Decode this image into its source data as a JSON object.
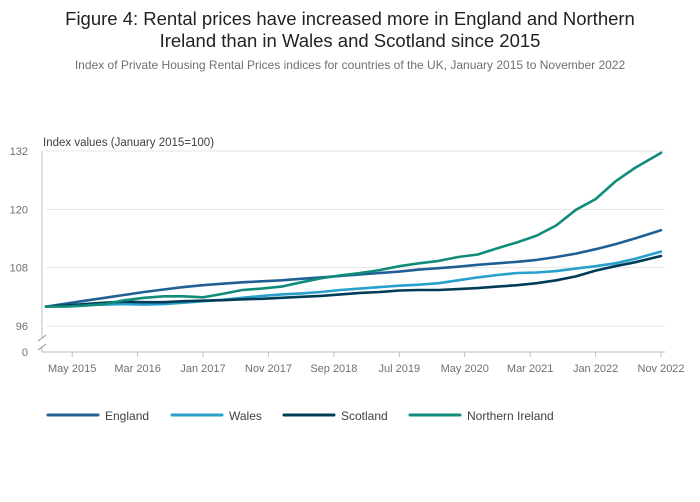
{
  "title_line1": "Figure 4: Rental prices have increased more in England and Northern",
  "title_line2": "Ireland than in Wales and Scotland since 2015",
  "subtitle": "Index of Private Housing Rental Prices indices for countries of the UK, January 2015 to November 2022",
  "chart_data": {
    "type": "line",
    "title": "Figure 4: Rental prices have increased more in England and Northern Ireland than in Wales and Scotland since 2015",
    "subtitle": "Index of Private Housing Rental Prices indices for countries of the UK, January 2015 to November 2022",
    "ylabel": "Index values (January 2015=100)",
    "xlabel": "",
    "ylim": [
      0,
      132
    ],
    "yticks": [
      0,
      96,
      108,
      120,
      132
    ],
    "y_axis_break": true,
    "grid": true,
    "legend_position": "bottom",
    "x_ticks": [
      "May 2015",
      "Mar 2016",
      "Jan 2017",
      "Nov 2017",
      "Sep 2018",
      "Jul 2019",
      "May 2020",
      "Mar 2021",
      "Jan 2022",
      "Nov 2022"
    ],
    "x_start": "Jan 2015",
    "x_end": "Nov 2022",
    "x": [
      "Jan 2015",
      "Apr 2015",
      "Jul 2015",
      "Oct 2015",
      "Jan 2016",
      "Apr 2016",
      "Jul 2016",
      "Oct 2016",
      "Jan 2017",
      "Apr 2017",
      "Jul 2017",
      "Oct 2017",
      "Jan 2018",
      "Apr 2018",
      "Jul 2018",
      "Oct 2018",
      "Jan 2019",
      "Apr 2019",
      "Jul 2019",
      "Oct 2019",
      "Jan 2020",
      "Apr 2020",
      "Jul 2020",
      "Oct 2020",
      "Jan 2021",
      "Apr 2021",
      "Jul 2021",
      "Oct 2021",
      "Jan 2022",
      "Apr 2022",
      "Jul 2022",
      "Nov 2022"
    ],
    "series": [
      {
        "name": "England",
        "color": "#206095",
        "values": [
          100.0,
          100.6,
          101.2,
          101.8,
          102.4,
          103.0,
          103.5,
          104.0,
          104.4,
          104.7,
          105.0,
          105.2,
          105.4,
          105.7,
          106.0,
          106.3,
          106.6,
          106.9,
          107.2,
          107.6,
          107.9,
          108.2,
          108.6,
          108.9,
          109.2,
          109.6,
          110.2,
          110.9,
          111.8,
          112.8,
          114.0,
          115.7
        ]
      },
      {
        "name": "Wales",
        "color": "#27a0cc",
        "values": [
          100.0,
          100.1,
          100.3,
          100.4,
          100.5,
          100.4,
          100.5,
          100.8,
          101.1,
          101.4,
          101.8,
          102.2,
          102.5,
          102.7,
          103.0,
          103.4,
          103.7,
          104.0,
          104.3,
          104.5,
          104.8,
          105.4,
          106.0,
          106.5,
          106.9,
          107.0,
          107.3,
          107.8,
          108.3,
          108.9,
          109.8,
          111.3
        ]
      },
      {
        "name": "Scotland",
        "color": "#003c57",
        "values": [
          100.0,
          100.2,
          100.5,
          100.8,
          101.0,
          100.9,
          100.9,
          101.1,
          101.2,
          101.3,
          101.5,
          101.6,
          101.8,
          102.0,
          102.2,
          102.5,
          102.8,
          103.0,
          103.3,
          103.4,
          103.4,
          103.6,
          103.8,
          104.1,
          104.4,
          104.8,
          105.4,
          106.2,
          107.4,
          108.3,
          109.1,
          110.4
        ]
      },
      {
        "name": "Northern Ireland",
        "color": "#118c7b",
        "values": [
          100.0,
          100.0,
          100.2,
          100.5,
          101.3,
          101.8,
          102.1,
          102.1,
          101.9,
          102.6,
          103.4,
          103.7,
          104.1,
          105.0,
          105.8,
          106.4,
          106.9,
          107.5,
          108.3,
          108.9,
          109.4,
          110.2,
          110.7,
          112.0,
          113.2,
          114.6,
          116.7,
          119.9,
          122.1,
          125.7,
          128.5,
          131.6
        ]
      }
    ]
  }
}
